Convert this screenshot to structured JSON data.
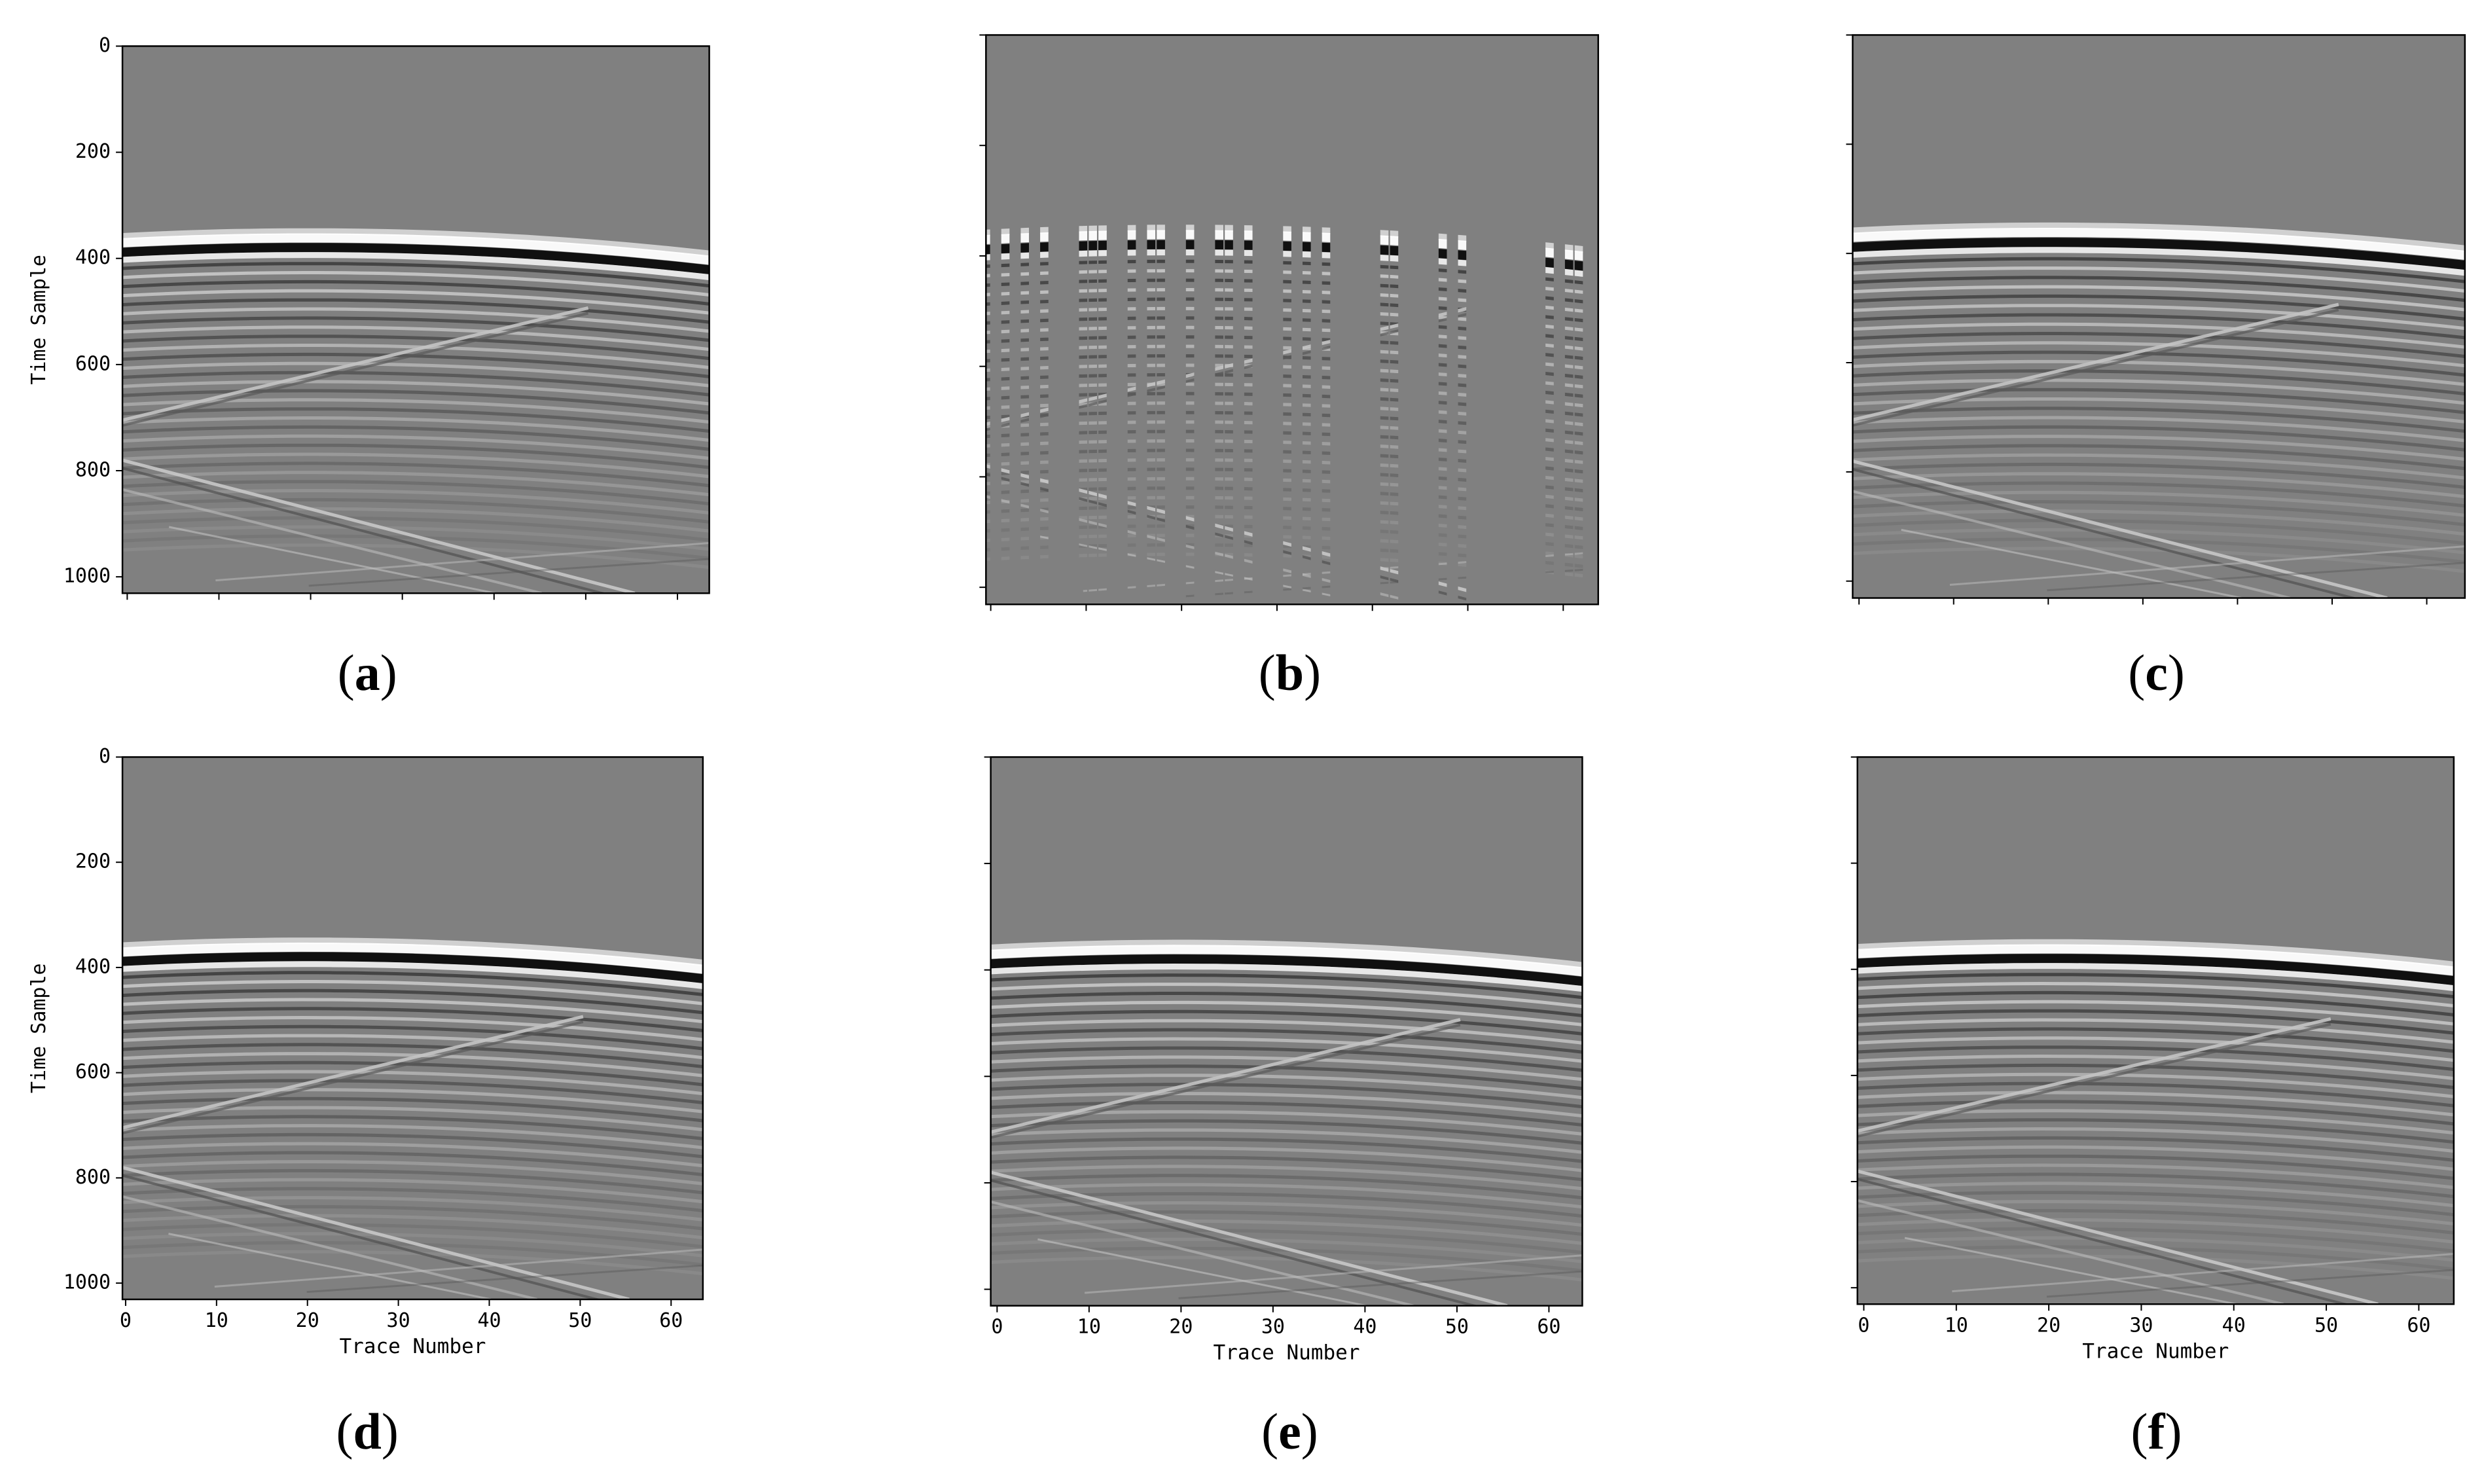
{
  "figure": {
    "background": "#ffffff",
    "gray": "#808080"
  },
  "chart_data": [
    {
      "id": "a",
      "panel_label": "(a)",
      "letter": "a",
      "type": "heatmap",
      "variant": "full",
      "xlabel": "",
      "ylabel": "Time Sample",
      "xlim": [
        0,
        63
      ],
      "ylim": [
        1024,
        0
      ],
      "yticks": [
        0,
        200,
        400,
        600,
        800,
        1000
      ],
      "ytick_labels": [
        "0",
        "200",
        "400",
        "600",
        "800",
        "1000"
      ],
      "xticks": [
        0,
        10,
        20,
        30,
        40,
        50,
        60
      ],
      "xtick_labels": []
    },
    {
      "id": "b",
      "panel_label": "(b)",
      "letter": "b",
      "type": "heatmap",
      "variant": "decimated",
      "xlabel": "",
      "ylabel": "",
      "xlim": [
        0,
        63
      ],
      "ylim": [
        1024,
        0
      ],
      "yticks": [
        0,
        200,
        400,
        600,
        800,
        1000
      ],
      "ytick_labels": [],
      "xticks": [
        0,
        10,
        20,
        30,
        40,
        50,
        60
      ],
      "xtick_labels": [],
      "kept_traces": [
        0,
        2,
        4,
        6,
        10,
        11,
        12,
        15,
        17,
        18,
        21,
        24,
        25,
        27,
        31,
        33,
        35,
        41,
        42,
        47,
        49,
        58,
        60,
        61
      ]
    },
    {
      "id": "c",
      "panel_label": "(c)",
      "letter": "c",
      "type": "heatmap",
      "variant": "full",
      "xlabel": "",
      "ylabel": "",
      "xlim": [
        0,
        63
      ],
      "ylim": [
        1024,
        0
      ],
      "yticks": [
        0,
        200,
        400,
        600,
        800,
        1000
      ],
      "ytick_labels": [],
      "xticks": [
        0,
        10,
        20,
        30,
        40,
        50,
        60
      ],
      "xtick_labels": []
    },
    {
      "id": "d",
      "panel_label": "(d)",
      "letter": "d",
      "type": "heatmap",
      "variant": "full",
      "xlabel": "Trace Number",
      "ylabel": "Time Sample",
      "xlim": [
        0,
        63
      ],
      "ylim": [
        1024,
        0
      ],
      "yticks": [
        0,
        200,
        400,
        600,
        800,
        1000
      ],
      "ytick_labels": [
        "0",
        "200",
        "400",
        "600",
        "800",
        "1000"
      ],
      "xticks": [
        0,
        10,
        20,
        30,
        40,
        50,
        60
      ],
      "xtick_labels": [
        "0",
        "10",
        "20",
        "30",
        "40",
        "50",
        "60"
      ]
    },
    {
      "id": "e",
      "panel_label": "(e)",
      "letter": "e",
      "type": "heatmap",
      "variant": "full",
      "xlabel": "Trace Number",
      "ylabel": "",
      "xlim": [
        0,
        63
      ],
      "ylim": [
        1024,
        0
      ],
      "yticks": [
        0,
        200,
        400,
        600,
        800,
        1000
      ],
      "ytick_labels": [],
      "xticks": [
        0,
        10,
        20,
        30,
        40,
        50,
        60
      ],
      "xtick_labels": [
        "0",
        "10",
        "20",
        "30",
        "40",
        "50",
        "60"
      ]
    },
    {
      "id": "f",
      "panel_label": "(f)",
      "letter": "f",
      "type": "heatmap",
      "variant": "full",
      "xlabel": "Trace Number",
      "ylabel": "",
      "xlim": [
        0,
        63
      ],
      "ylim": [
        1024,
        0
      ],
      "yticks": [
        0,
        200,
        400,
        600,
        800,
        1000
      ],
      "ytick_labels": [],
      "xticks": [
        0,
        10,
        20,
        30,
        40,
        50,
        60
      ],
      "xtick_labels": [
        "0",
        "10",
        "20",
        "30",
        "40",
        "50",
        "60"
      ]
    }
  ]
}
